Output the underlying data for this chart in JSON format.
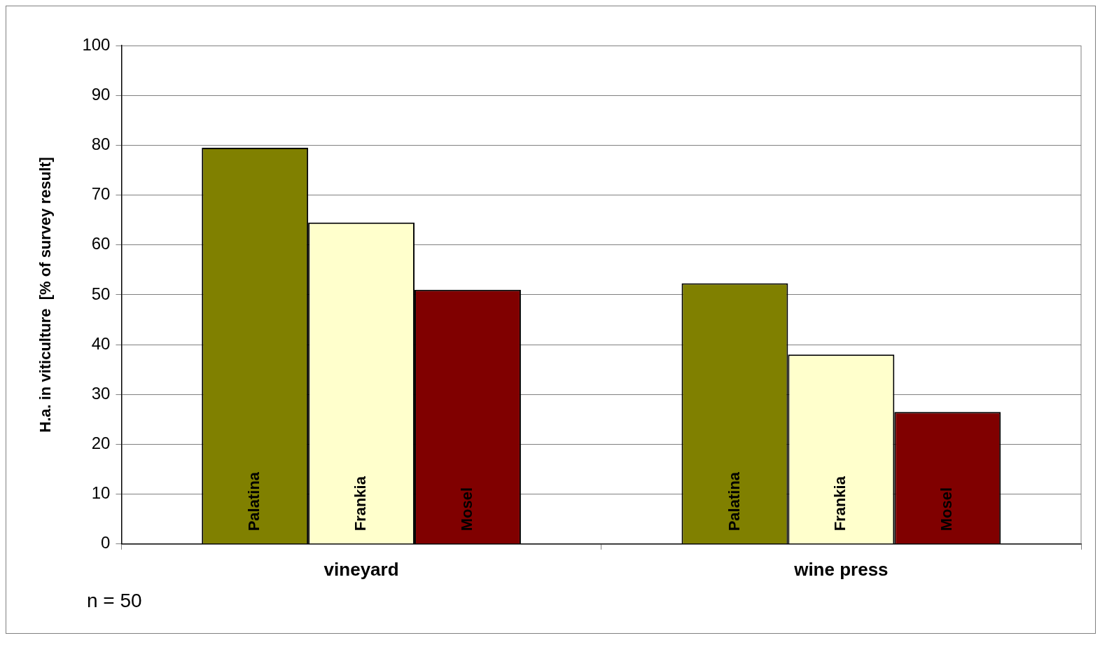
{
  "chart_data": {
    "type": "bar",
    "ylabel": "H.a. in viticulture  [% of survey result]",
    "categories": [
      "vineyard",
      "wine press"
    ],
    "series": [
      {
        "name": "Palatina",
        "color": "#808000",
        "values": [
          79.5,
          52.3
        ]
      },
      {
        "name": "Frankia",
        "color": "#ffffcc",
        "values": [
          64.5,
          38
        ]
      },
      {
        "name": "Mosel",
        "color": "#800000",
        "values": [
          51,
          26.5
        ]
      }
    ],
    "ylim": [
      0,
      100
    ],
    "yticks": [
      0,
      10,
      20,
      30,
      40,
      50,
      60,
      70,
      80,
      90,
      100
    ],
    "grid": "y",
    "legend": false,
    "annotations": [
      "n = 50"
    ]
  }
}
